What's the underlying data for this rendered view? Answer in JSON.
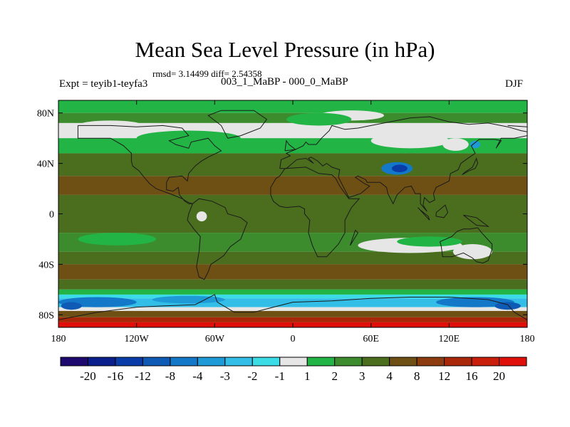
{
  "chart_data": {
    "type": "contour-map",
    "title": "Mean Sea Level Pressure (in hPa)",
    "stats_text": "rmsd= 3.14499 diff= 2.54358",
    "left_label": "Expt = teyib1-teyfa3",
    "center_label": "003_1_MaBP - 000_0_MaBP",
    "right_label": "DJF",
    "lon_range": [
      -180,
      180
    ],
    "lat_range": [
      -90,
      90
    ],
    "x_ticks": [
      {
        "value": -180,
        "label": "180"
      },
      {
        "value": -120,
        "label": "120W"
      },
      {
        "value": -60,
        "label": "60W"
      },
      {
        "value": 0,
        "label": "0"
      },
      {
        "value": 60,
        "label": "60E"
      },
      {
        "value": 120,
        "label": "120E"
      },
      {
        "value": 180,
        "label": "180"
      }
    ],
    "y_ticks": [
      {
        "value": 80,
        "label": "80N"
      },
      {
        "value": 40,
        "label": "40N"
      },
      {
        "value": 0,
        "label": "0"
      },
      {
        "value": -40,
        "label": "40S"
      },
      {
        "value": -80,
        "label": "80S"
      }
    ],
    "colorbar": {
      "levels": [
        "-20",
        "-16",
        "-12",
        "-8",
        "-4",
        "-3",
        "-2",
        "-1",
        "1",
        "2",
        "3",
        "4",
        "8",
        "12",
        "16",
        "20"
      ],
      "colors": [
        "#1e0a6e",
        "#0a1e8c",
        "#0a3ca8",
        "#0f5ab4",
        "#1478c8",
        "#1e9bd7",
        "#32bee6",
        "#3cdce6",
        "#e6e6e6",
        "#23b446",
        "#3c8c2d",
        "#4b6e1e",
        "#6e5014",
        "#8c3c0f",
        "#aa280a",
        "#c81e0a",
        "#e10f0a"
      ]
    },
    "bands": [
      {
        "lat_from": 90,
        "lat_to": 80,
        "color_index": 9
      },
      {
        "lat_from": 80,
        "lat_to": 72,
        "color_index": 10
      },
      {
        "lat_from": 72,
        "lat_to": 60,
        "color_index": 8
      },
      {
        "lat_from": 60,
        "lat_to": 48,
        "color_index": 9
      },
      {
        "lat_from": 48,
        "lat_to": 30,
        "color_index": 11
      },
      {
        "lat_from": 30,
        "lat_to": 15,
        "color_index": 12
      },
      {
        "lat_from": 15,
        "lat_to": -15,
        "color_index": 11
      },
      {
        "lat_from": -15,
        "lat_to": -30,
        "color_index": 10
      },
      {
        "lat_from": -30,
        "lat_to": -40,
        "color_index": 11
      },
      {
        "lat_from": -40,
        "lat_to": -52,
        "color_index": 12
      },
      {
        "lat_from": -52,
        "lat_to": -60,
        "color_index": 11
      },
      {
        "lat_from": -60,
        "lat_to": -64,
        "color_index": 9
      },
      {
        "lat_from": -64,
        "lat_to": -67,
        "color_index": 7
      },
      {
        "lat_from": -67,
        "lat_to": -74,
        "color_index": 6
      },
      {
        "lat_from": -74,
        "lat_to": -77,
        "color_index": 8
      },
      {
        "lat_from": -77,
        "lat_to": -82,
        "color_index": 12
      },
      {
        "lat_from": -82,
        "lat_to": -86,
        "color_index": 14
      },
      {
        "lat_from": -86,
        "lat_to": -90,
        "color_index": 16
      }
    ],
    "blobs": [
      {
        "lon": 45,
        "lat": 78,
        "rx": 25,
        "ry": 4,
        "color_index": 8
      },
      {
        "lon": -140,
        "lat": 70,
        "rx": 25,
        "ry": 4,
        "color_index": 8
      },
      {
        "lon": 90,
        "lat": 58,
        "rx": 30,
        "ry": 6,
        "color_index": 8
      },
      {
        "lon": 125,
        "lat": 55,
        "rx": 10,
        "ry": 5,
        "color_index": 8
      },
      {
        "lon": 80,
        "lat": 36,
        "rx": 12,
        "ry": 5,
        "color_index": 4
      },
      {
        "lon": 82,
        "lat": 36,
        "rx": 6,
        "ry": 3,
        "color_index": 2
      },
      {
        "lon": 140,
        "lat": 55,
        "rx": 4,
        "ry": 3,
        "color_index": 5
      },
      {
        "lon": -70,
        "lat": -2,
        "rx": 4,
        "ry": 4,
        "color_index": 8
      },
      {
        "lon": 20,
        "lat": 75,
        "rx": 25,
        "ry": 5,
        "color_index": 9
      },
      {
        "lon": -80,
        "lat": 60,
        "rx": 40,
        "ry": 6,
        "color_index": 9
      },
      {
        "lon": 90,
        "lat": -25,
        "rx": 40,
        "ry": 6,
        "color_index": 8
      },
      {
        "lon": 138,
        "lat": -30,
        "rx": 15,
        "ry": 6,
        "color_index": 8
      },
      {
        "lon": 105,
        "lat": -22,
        "rx": 25,
        "ry": 4,
        "color_index": 9
      },
      {
        "lon": -135,
        "lat": -20,
        "rx": 30,
        "ry": 5,
        "color_index": 9
      },
      {
        "lon": -150,
        "lat": -70,
        "rx": 30,
        "ry": 4,
        "color_index": 4
      },
      {
        "lon": -80,
        "lat": -68,
        "rx": 28,
        "ry": 3,
        "color_index": 5
      },
      {
        "lon": 140,
        "lat": -70,
        "rx": 30,
        "ry": 4,
        "color_index": 4
      },
      {
        "lon": 165,
        "lat": -73,
        "rx": 10,
        "ry": 3,
        "color_index": 3
      },
      {
        "lon": -170,
        "lat": -73,
        "rx": 8,
        "ry": 3,
        "color_index": 3
      }
    ],
    "coastlines": [
      [
        [
          -165,
          70
        ],
        [
          -140,
          70
        ],
        [
          -120,
          69
        ],
        [
          -100,
          70
        ],
        [
          -85,
          68
        ],
        [
          -80,
          62
        ],
        [
          -95,
          58
        ],
        [
          -90,
          55
        ],
        [
          -80,
          52
        ],
        [
          -78,
          57
        ],
        [
          -65,
          60
        ],
        [
          -60,
          54
        ],
        [
          -55,
          50
        ],
        [
          -65,
          45
        ],
        [
          -70,
          42
        ],
        [
          -75,
          38
        ],
        [
          -80,
          32
        ],
        [
          -81,
          26
        ],
        [
          -85,
          30
        ],
        [
          -95,
          29
        ],
        [
          -97,
          25
        ],
        [
          -97,
          19
        ],
        [
          -92,
          18
        ],
        [
          -88,
          21
        ],
        [
          -87,
          15
        ],
        [
          -83,
          10
        ],
        [
          -80,
          8
        ],
        [
          -77,
          8
        ],
        [
          -80,
          9
        ],
        [
          -85,
          12
        ],
        [
          -92,
          15
        ],
        [
          -105,
          20
        ],
        [
          -110,
          24
        ],
        [
          -115,
          30
        ],
        [
          -118,
          34
        ],
        [
          -123,
          38
        ],
        [
          -124,
          42
        ],
        [
          -124,
          48
        ],
        [
          -130,
          54
        ],
        [
          -140,
          60
        ],
        [
          -150,
          60
        ],
        [
          -165,
          60
        ],
        [
          -165,
          70
        ]
      ],
      [
        [
          -77,
          8
        ],
        [
          -72,
          12
        ],
        [
          -62,
          10
        ],
        [
          -52,
          5
        ],
        [
          -50,
          0
        ],
        [
          -40,
          -3
        ],
        [
          -35,
          -7
        ],
        [
          -37,
          -12
        ],
        [
          -40,
          -20
        ],
        [
          -48,
          -26
        ],
        [
          -53,
          -33
        ],
        [
          -57,
          -36
        ],
        [
          -63,
          -40
        ],
        [
          -65,
          -46
        ],
        [
          -68,
          -52
        ],
        [
          -72,
          -50
        ],
        [
          -74,
          -42
        ],
        [
          -72,
          -30
        ],
        [
          -71,
          -18
        ],
        [
          -76,
          -12
        ],
        [
          -81,
          -5
        ],
        [
          -80,
          0
        ],
        [
          -77,
          8
        ]
      ],
      [
        [
          -17,
          15
        ],
        [
          -17,
          21
        ],
        [
          -13,
          28
        ],
        [
          -10,
          30
        ],
        [
          -6,
          36
        ],
        [
          10,
          37
        ],
        [
          20,
          32
        ],
        [
          30,
          31
        ],
        [
          33,
          28
        ],
        [
          36,
          22
        ],
        [
          43,
          12
        ],
        [
          51,
          12
        ],
        [
          45,
          5
        ],
        [
          40,
          -5
        ],
        [
          40,
          -15
        ],
        [
          35,
          -24
        ],
        [
          26,
          -34
        ],
        [
          19,
          -34
        ],
        [
          15,
          -25
        ],
        [
          12,
          -15
        ],
        [
          13,
          -5
        ],
        [
          9,
          0
        ],
        [
          9,
          4
        ],
        [
          5,
          6
        ],
        [
          -5,
          5
        ],
        [
          -10,
          6
        ],
        [
          -15,
          10
        ],
        [
          -17,
          15
        ]
      ],
      [
        [
          -10,
          36
        ],
        [
          -9,
          43
        ],
        [
          -2,
          46
        ],
        [
          -5,
          48
        ],
        [
          2,
          51
        ],
        [
          8,
          54
        ],
        [
          10,
          57
        ],
        [
          12,
          55
        ],
        [
          18,
          55
        ],
        [
          22,
          60
        ],
        [
          28,
          66
        ],
        [
          30,
          70
        ],
        [
          40,
          67
        ],
        [
          50,
          68
        ],
        [
          60,
          70
        ],
        [
          70,
          72
        ],
        [
          90,
          76
        ],
        [
          105,
          77
        ],
        [
          120,
          73
        ],
        [
          135,
          71
        ],
        [
          150,
          72
        ],
        [
          165,
          69
        ],
        [
          175,
          66
        ],
        [
          180,
          65
        ],
        [
          180,
          69
        ],
        [
          165,
          70
        ]
      ],
      [
        [
          180,
          62
        ],
        [
          170,
          60
        ],
        [
          160,
          60
        ],
        [
          156,
          52
        ],
        [
          160,
          58
        ],
        [
          155,
          59
        ],
        [
          143,
          59
        ],
        [
          137,
          54
        ],
        [
          140,
          48
        ],
        [
          133,
          43
        ],
        [
          129,
          40
        ],
        [
          127,
          35
        ],
        [
          121,
          32
        ],
        [
          120,
          26
        ],
        [
          110,
          21
        ],
        [
          108,
          16
        ],
        [
          109,
          11
        ],
        [
          105,
          9
        ],
        [
          101,
          13
        ],
        [
          100,
          7
        ],
        [
          103,
          2
        ],
        [
          98,
          8
        ],
        [
          98,
          16
        ],
        [
          94,
          16
        ],
        [
          91,
          22
        ],
        [
          86,
          21
        ],
        [
          80,
          15
        ],
        [
          77,
          8
        ],
        [
          73,
          16
        ],
        [
          72,
          21
        ],
        [
          67,
          25
        ],
        [
          57,
          25
        ],
        [
          56,
          27
        ],
        [
          50,
          30
        ],
        [
          48,
          29
        ],
        [
          55,
          24
        ],
        [
          59,
          22
        ],
        [
          52,
          16
        ],
        [
          43,
          13
        ],
        [
          39,
          21
        ],
        [
          35,
          29
        ],
        [
          36,
          35
        ],
        [
          30,
          37
        ],
        [
          26,
          40
        ],
        [
          23,
          38
        ],
        [
          21,
          40
        ],
        [
          19,
          42
        ],
        [
          14,
          45
        ],
        [
          12,
          44
        ],
        [
          16,
          40
        ],
        [
          10,
          44
        ],
        [
          3,
          43
        ],
        [
          -5,
          36
        ],
        [
          -10,
          36
        ]
      ],
      [
        [
          113,
          -22
        ],
        [
          114,
          -26
        ],
        [
          115,
          -34
        ],
        [
          122,
          -34
        ],
        [
          131,
          -31
        ],
        [
          138,
          -35
        ],
        [
          141,
          -38
        ],
        [
          146,
          -39
        ],
        [
          150,
          -37
        ],
        [
          153,
          -28
        ],
        [
          153,
          -24
        ],
        [
          145,
          -15
        ],
        [
          142,
          -11
        ],
        [
          136,
          -12
        ],
        [
          131,
          -12
        ],
        [
          126,
          -14
        ],
        [
          122,
          -18
        ],
        [
          113,
          -22
        ]
      ],
      [
        [
          -180,
          -84
        ],
        [
          -150,
          -78
        ],
        [
          -120,
          -74
        ],
        [
          -100,
          -73
        ],
        [
          -75,
          -72
        ],
        [
          -60,
          -64
        ],
        [
          -58,
          -70
        ],
        [
          -45,
          -78
        ],
        [
          -30,
          -78
        ],
        [
          0,
          -70
        ],
        [
          30,
          -69
        ],
        [
          60,
          -67
        ],
        [
          90,
          -66
        ],
        [
          120,
          -66
        ],
        [
          150,
          -68
        ],
        [
          165,
          -72
        ],
        [
          170,
          -78
        ],
        [
          180,
          -84
        ]
      ],
      [
        [
          96,
          5
        ],
        [
          105,
          -5
        ],
        [
          104,
          -2
        ],
        [
          98,
          3
        ],
        [
          96,
          5
        ]
      ],
      [
        [
          110,
          1
        ],
        [
          117,
          7
        ],
        [
          119,
          1
        ],
        [
          116,
          -3
        ],
        [
          110,
          -2
        ],
        [
          110,
          1
        ]
      ],
      [
        [
          131,
          -1
        ],
        [
          141,
          -3
        ],
        [
          150,
          -10
        ],
        [
          141,
          -9
        ],
        [
          131,
          -1
        ]
      ],
      [
        [
          130,
          31
        ],
        [
          135,
          34
        ],
        [
          140,
          36
        ],
        [
          142,
          40
        ],
        [
          141,
          44
        ],
        [
          138,
          37
        ],
        [
          132,
          33
        ],
        [
          130,
          31
        ]
      ],
      [
        [
          -50,
          60
        ],
        [
          -40,
          62
        ],
        [
          -25,
          68
        ],
        [
          -20,
          75
        ],
        [
          -30,
          82
        ],
        [
          -55,
          82
        ],
        [
          -65,
          78
        ],
        [
          -55,
          70
        ],
        [
          -50,
          60
        ]
      ],
      [
        [
          -6,
          50
        ],
        [
          2,
          51
        ],
        [
          -3,
          55
        ],
        [
          -5,
          58
        ],
        [
          -6,
          50
        ]
      ],
      [
        [
          44,
          -25
        ],
        [
          50,
          -15
        ],
        [
          48,
          -13
        ],
        [
          44,
          -25
        ]
      ]
    ]
  }
}
